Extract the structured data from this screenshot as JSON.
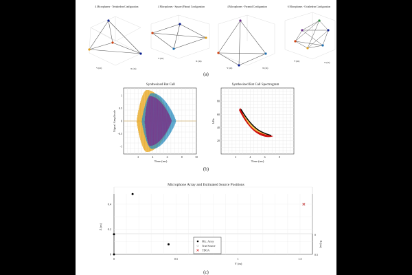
{
  "panel_a": {
    "label": "(a)",
    "subplots": [
      {
        "title": "4 Microphones - Tetrahedron Configuration",
        "x_axis": "X (m)",
        "y_axis": "Y (m)"
      },
      {
        "title": "4 Microphones - Square (Planar) Configuration",
        "x_axis": "X (m)",
        "y_axis": "Y (m)"
      },
      {
        "title": "4 Microphones - Pyramid Configuration",
        "x_axis": "X (m)",
        "y_axis": "Y (m)"
      },
      {
        "title": "6 Microphones - Octahedron Configuration",
        "x_axis": "X (m)",
        "y_axis": "Y (m)"
      }
    ],
    "mic_colors": [
      "#0a1f8f",
      "#d04010",
      "#e0a020",
      "#6a2a8a",
      "#2a8a3a",
      "#1f6fb0"
    ]
  },
  "panel_b": {
    "label": "(b)",
    "call": {
      "title": "Synthesized Bat Call",
      "xlabel": "Time (ms)",
      "ylabel": "Signal Amplitude",
      "x_ticks": [
        "2",
        "4",
        "6",
        "8",
        "10"
      ],
      "y_ticks": [
        "1",
        "0.5",
        "0",
        "-0.5",
        "-1"
      ],
      "colors": [
        "#e8a51a",
        "#2f8fc0",
        "#7a2e8a"
      ]
    },
    "spectrogram": {
      "title": "Synthesized Bat Call Spectrogram",
      "xlabel": "Time (ms)",
      "ylabel": "kHz",
      "x_ticks": [
        "2",
        "4",
        "6",
        "8"
      ],
      "y_ticks": [
        "80",
        "60",
        "40",
        "20"
      ]
    }
  },
  "panel_c": {
    "label": "(c)",
    "title": "Microphone Array and Estimated Source Positions",
    "xlabel": "Y (m)",
    "ylabel": "Z (m)",
    "x2label": "X (m)",
    "x_ticks": [
      "0",
      "0.5",
      "1",
      "1.5"
    ],
    "z_ticks": [
      "0",
      "0.2",
      "0.4"
    ],
    "x2_ticks": [
      "0",
      "0.5"
    ],
    "legend": [
      {
        "label": "Mic. Array",
        "marker": "dot",
        "color": "#000000"
      },
      {
        "label": "True Source",
        "marker": "circle",
        "color": "#cccccc"
      },
      {
        "label": "TDOA",
        "marker": "cross",
        "color": "#d42020"
      }
    ],
    "chart_data": {
      "type": "scatter",
      "title": "Microphone Array and Estimated Source Positions",
      "xlabel": "Y (m)",
      "ylabel": "Z (m)",
      "xlim": [
        0,
        1.55
      ],
      "ylim": [
        0,
        0.52
      ],
      "series": [
        {
          "name": "Mic. Array",
          "x": [
            0.0,
            0.0,
            0.15,
            0.44
          ],
          "y": [
            0.0,
            0.16,
            0.48,
            0.08
          ]
        },
        {
          "name": "True Source",
          "x": [
            1.53
          ],
          "y": [
            0.4
          ]
        },
        {
          "name": "TDOA",
          "x": [
            1.53
          ],
          "y": [
            0.4
          ]
        }
      ]
    }
  }
}
